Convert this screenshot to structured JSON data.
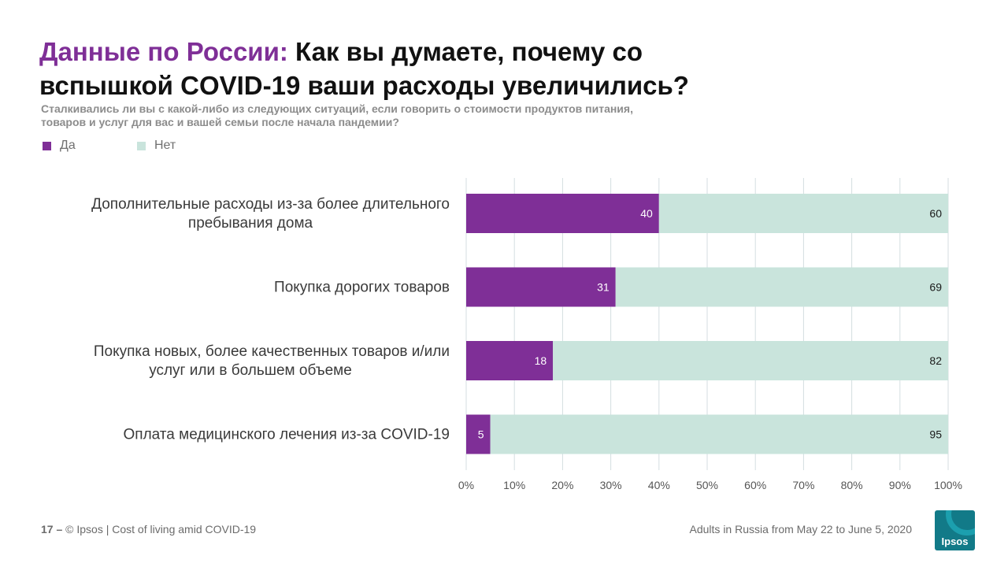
{
  "header": {
    "title_accent": "Данные по России:",
    "title_main": "Как вы думаете, почему со вспышкой COVID-19 ваши расходы увеличились?",
    "subtitle": "Сталкивались ли вы с какой-либо из следующих ситуаций, если говорить о стоимости продуктов питания, товаров и услуг для вас и вашей семьи после начала пандемии?"
  },
  "legend": [
    {
      "label": "Да",
      "color": "#7f2f97"
    },
    {
      "label": "Нет",
      "color": "#c9e4dc"
    }
  ],
  "chart_data": {
    "type": "bar",
    "orientation": "horizontal",
    "stacked": true,
    "categories": [
      [
        "Дополнительные  расходы из-за более длительного",
        "пребывания  дома"
      ],
      [
        "Покупка  дорогих товаров"
      ],
      [
        "Покупка  новых, более качественных товаров и/или",
        "услуг или  в большем  объеме"
      ],
      [
        "Оплата медицинского  лечения  из-за COVID-19"
      ]
    ],
    "series": [
      {
        "name": "Да",
        "color": "#7f2f97",
        "values": [
          40,
          31,
          18,
          5
        ]
      },
      {
        "name": "Нет",
        "color": "#c9e4dc",
        "values": [
          60,
          69,
          82,
          95
        ]
      }
    ],
    "xlim": [
      0,
      100
    ],
    "ticks": [
      "0%",
      "10%",
      "20%",
      "30%",
      "40%",
      "50%",
      "60%",
      "70%",
      "80%",
      "90%",
      "100%"
    ],
    "grid": true,
    "legend_position": "top-left"
  },
  "footer": {
    "page": "17",
    "separator": " – ",
    "source": "© Ipsos | Cost of living amid COVID-19",
    "note": "Adults in Russia from May 22 to June 5, 2020",
    "logo_text": "Ipsos"
  }
}
